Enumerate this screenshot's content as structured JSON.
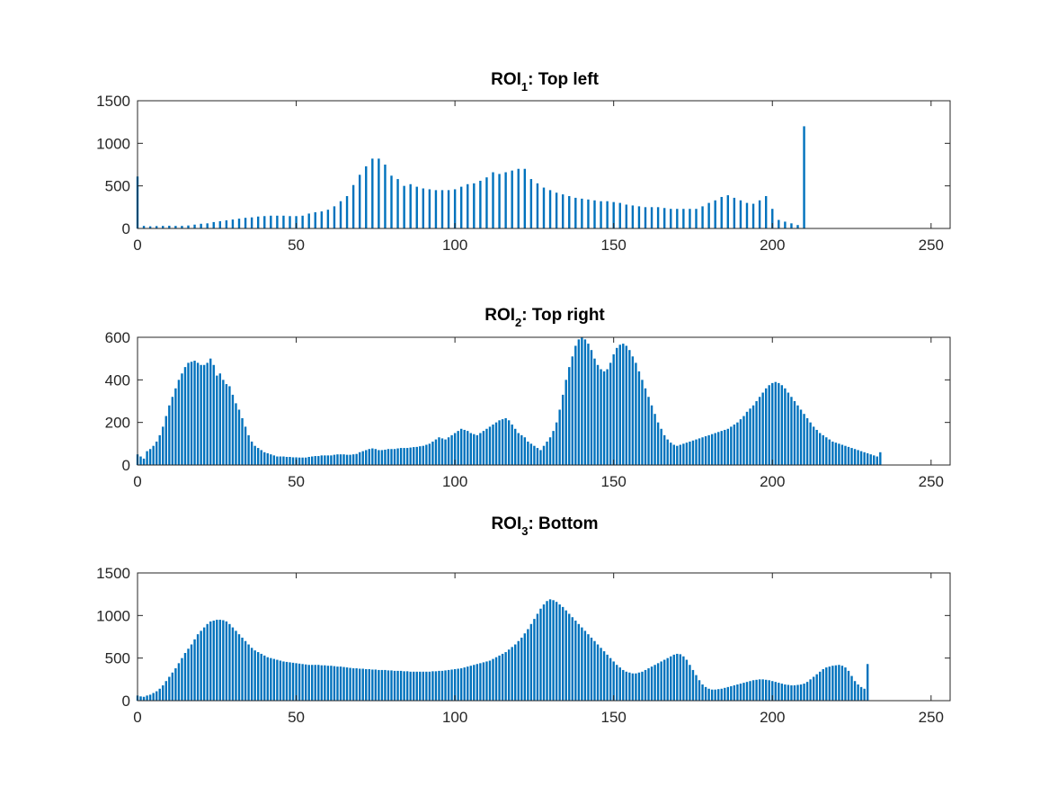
{
  "figure": {
    "background": "#ffffff",
    "bar_color": "#0072BD",
    "axis_color": "#262626"
  },
  "chart_data": [
    {
      "type": "bar",
      "title": {
        "main": "ROI",
        "subscript": "1",
        "rest": ": Top left"
      },
      "xlim": [
        0,
        256
      ],
      "ylim": [
        0,
        1500
      ],
      "xticks": [
        0,
        50,
        100,
        150,
        200,
        250
      ],
      "yticks": [
        0,
        500,
        1000,
        1500
      ],
      "x_start": 0,
      "x_step": 2,
      "values": [
        610,
        30,
        25,
        28,
        30,
        32,
        30,
        30,
        35,
        45,
        55,
        60,
        75,
        85,
        95,
        105,
        115,
        125,
        130,
        140,
        145,
        150,
        150,
        150,
        145,
        145,
        150,
        175,
        190,
        200,
        220,
        260,
        320,
        380,
        510,
        630,
        730,
        820,
        820,
        750,
        620,
        580,
        500,
        520,
        490,
        470,
        460,
        450,
        450,
        450,
        460,
        490,
        520,
        530,
        560,
        600,
        660,
        640,
        660,
        680,
        700,
        700,
        580,
        530,
        480,
        450,
        420,
        400,
        380,
        360,
        350,
        340,
        330,
        320,
        320,
        310,
        300,
        280,
        270,
        260,
        250,
        250,
        250,
        240,
        230,
        230,
        230,
        230,
        230,
        260,
        300,
        330,
        370,
        390,
        360,
        330,
        300,
        290,
        330,
        380,
        230,
        100,
        80,
        60,
        40,
        1200
      ]
    },
    {
      "type": "bar",
      "title": {
        "main": "ROI",
        "subscript": "2",
        "rest": ": Top right"
      },
      "xlim": [
        0,
        256
      ],
      "ylim": [
        0,
        600
      ],
      "xticks": [
        0,
        50,
        100,
        150,
        200,
        250
      ],
      "yticks": [
        0,
        200,
        400,
        600
      ],
      "x_start": 0,
      "x_step": 1,
      "values": [
        50,
        40,
        30,
        65,
        75,
        90,
        110,
        140,
        180,
        230,
        280,
        320,
        360,
        400,
        430,
        460,
        480,
        485,
        490,
        480,
        470,
        470,
        480,
        500,
        470,
        420,
        430,
        400,
        380,
        370,
        330,
        290,
        260,
        220,
        180,
        140,
        110,
        90,
        80,
        70,
        60,
        55,
        50,
        45,
        40,
        40,
        40,
        38,
        38,
        36,
        36,
        35,
        35,
        35,
        38,
        40,
        42,
        42,
        45,
        45,
        45,
        45,
        48,
        50,
        50,
        50,
        48,
        48,
        50,
        52,
        60,
        65,
        70,
        75,
        78,
        75,
        70,
        70,
        72,
        75,
        75,
        75,
        78,
        80,
        80,
        80,
        82,
        84,
        85,
        88,
        90,
        95,
        100,
        110,
        120,
        130,
        125,
        120,
        130,
        140,
        150,
        160,
        170,
        165,
        160,
        150,
        145,
        140,
        150,
        160,
        170,
        180,
        190,
        200,
        210,
        215,
        220,
        210,
        190,
        170,
        150,
        140,
        130,
        110,
        100,
        90,
        80,
        70,
        90,
        110,
        130,
        160,
        200,
        260,
        330,
        400,
        460,
        510,
        560,
        590,
        600,
        590,
        570,
        540,
        500,
        470,
        450,
        440,
        450,
        480,
        520,
        550,
        565,
        570,
        560,
        540,
        510,
        480,
        440,
        400,
        360,
        320,
        280,
        240,
        200,
        170,
        140,
        120,
        105,
        95,
        90,
        95,
        100,
        105,
        110,
        115,
        120,
        125,
        130,
        135,
        140,
        145,
        150,
        155,
        160,
        165,
        170,
        180,
        190,
        200,
        215,
        230,
        250,
        265,
        280,
        300,
        320,
        340,
        360,
        375,
        385,
        390,
        385,
        375,
        360,
        340,
        320,
        300,
        280,
        260,
        240,
        220,
        200,
        180,
        165,
        150,
        140,
        130,
        120,
        110,
        105,
        100,
        95,
        90,
        85,
        80,
        75,
        70,
        65,
        60,
        55,
        50,
        45,
        40,
        60
      ]
    },
    {
      "type": "bar",
      "title": {
        "main": "ROI",
        "subscript": "3",
        "rest": ": Bottom"
      },
      "xlim": [
        0,
        256
      ],
      "ylim": [
        0,
        1500
      ],
      "xticks": [
        0,
        50,
        100,
        150,
        200,
        250
      ],
      "yticks": [
        0,
        500,
        1000,
        1500
      ],
      "x_start": 0,
      "x_step": 1,
      "values": [
        60,
        50,
        45,
        60,
        70,
        90,
        110,
        140,
        180,
        230,
        280,
        330,
        380,
        440,
        500,
        560,
        610,
        660,
        720,
        780,
        820,
        860,
        900,
        930,
        940,
        950,
        950,
        945,
        930,
        900,
        860,
        820,
        780,
        740,
        700,
        660,
        620,
        590,
        570,
        550,
        530,
        510,
        500,
        490,
        480,
        470,
        460,
        455,
        450,
        445,
        440,
        435,
        430,
        425,
        420,
        420,
        420,
        420,
        415,
        415,
        410,
        410,
        405,
        400,
        400,
        395,
        390,
        385,
        380,
        380,
        375,
        375,
        370,
        370,
        365,
        365,
        360,
        360,
        360,
        355,
        355,
        350,
        350,
        350,
        345,
        345,
        340,
        340,
        340,
        340,
        340,
        340,
        340,
        345,
        345,
        350,
        350,
        355,
        360,
        365,
        370,
        375,
        380,
        390,
        400,
        410,
        420,
        430,
        440,
        450,
        460,
        470,
        490,
        510,
        530,
        550,
        570,
        600,
        630,
        660,
        700,
        740,
        790,
        840,
        900,
        960,
        1020,
        1080,
        1130,
        1170,
        1190,
        1180,
        1160,
        1130,
        1100,
        1060,
        1020,
        980,
        940,
        900,
        860,
        820,
        780,
        740,
        700,
        660,
        620,
        580,
        540,
        500,
        460,
        420,
        390,
        360,
        340,
        330,
        320,
        320,
        330,
        340,
        360,
        380,
        400,
        420,
        440,
        460,
        480,
        500,
        520,
        540,
        550,
        545,
        520,
        480,
        420,
        360,
        300,
        240,
        190,
        160,
        140,
        130,
        130,
        135,
        140,
        150,
        160,
        170,
        180,
        190,
        200,
        210,
        220,
        230,
        240,
        245,
        250,
        250,
        245,
        240,
        230,
        220,
        210,
        200,
        190,
        185,
        180,
        180,
        185,
        190,
        200,
        220,
        250,
        280,
        310,
        340,
        370,
        390,
        400,
        410,
        415,
        420,
        410,
        390,
        350,
        290,
        230,
        190,
        160,
        140,
        430
      ]
    }
  ]
}
